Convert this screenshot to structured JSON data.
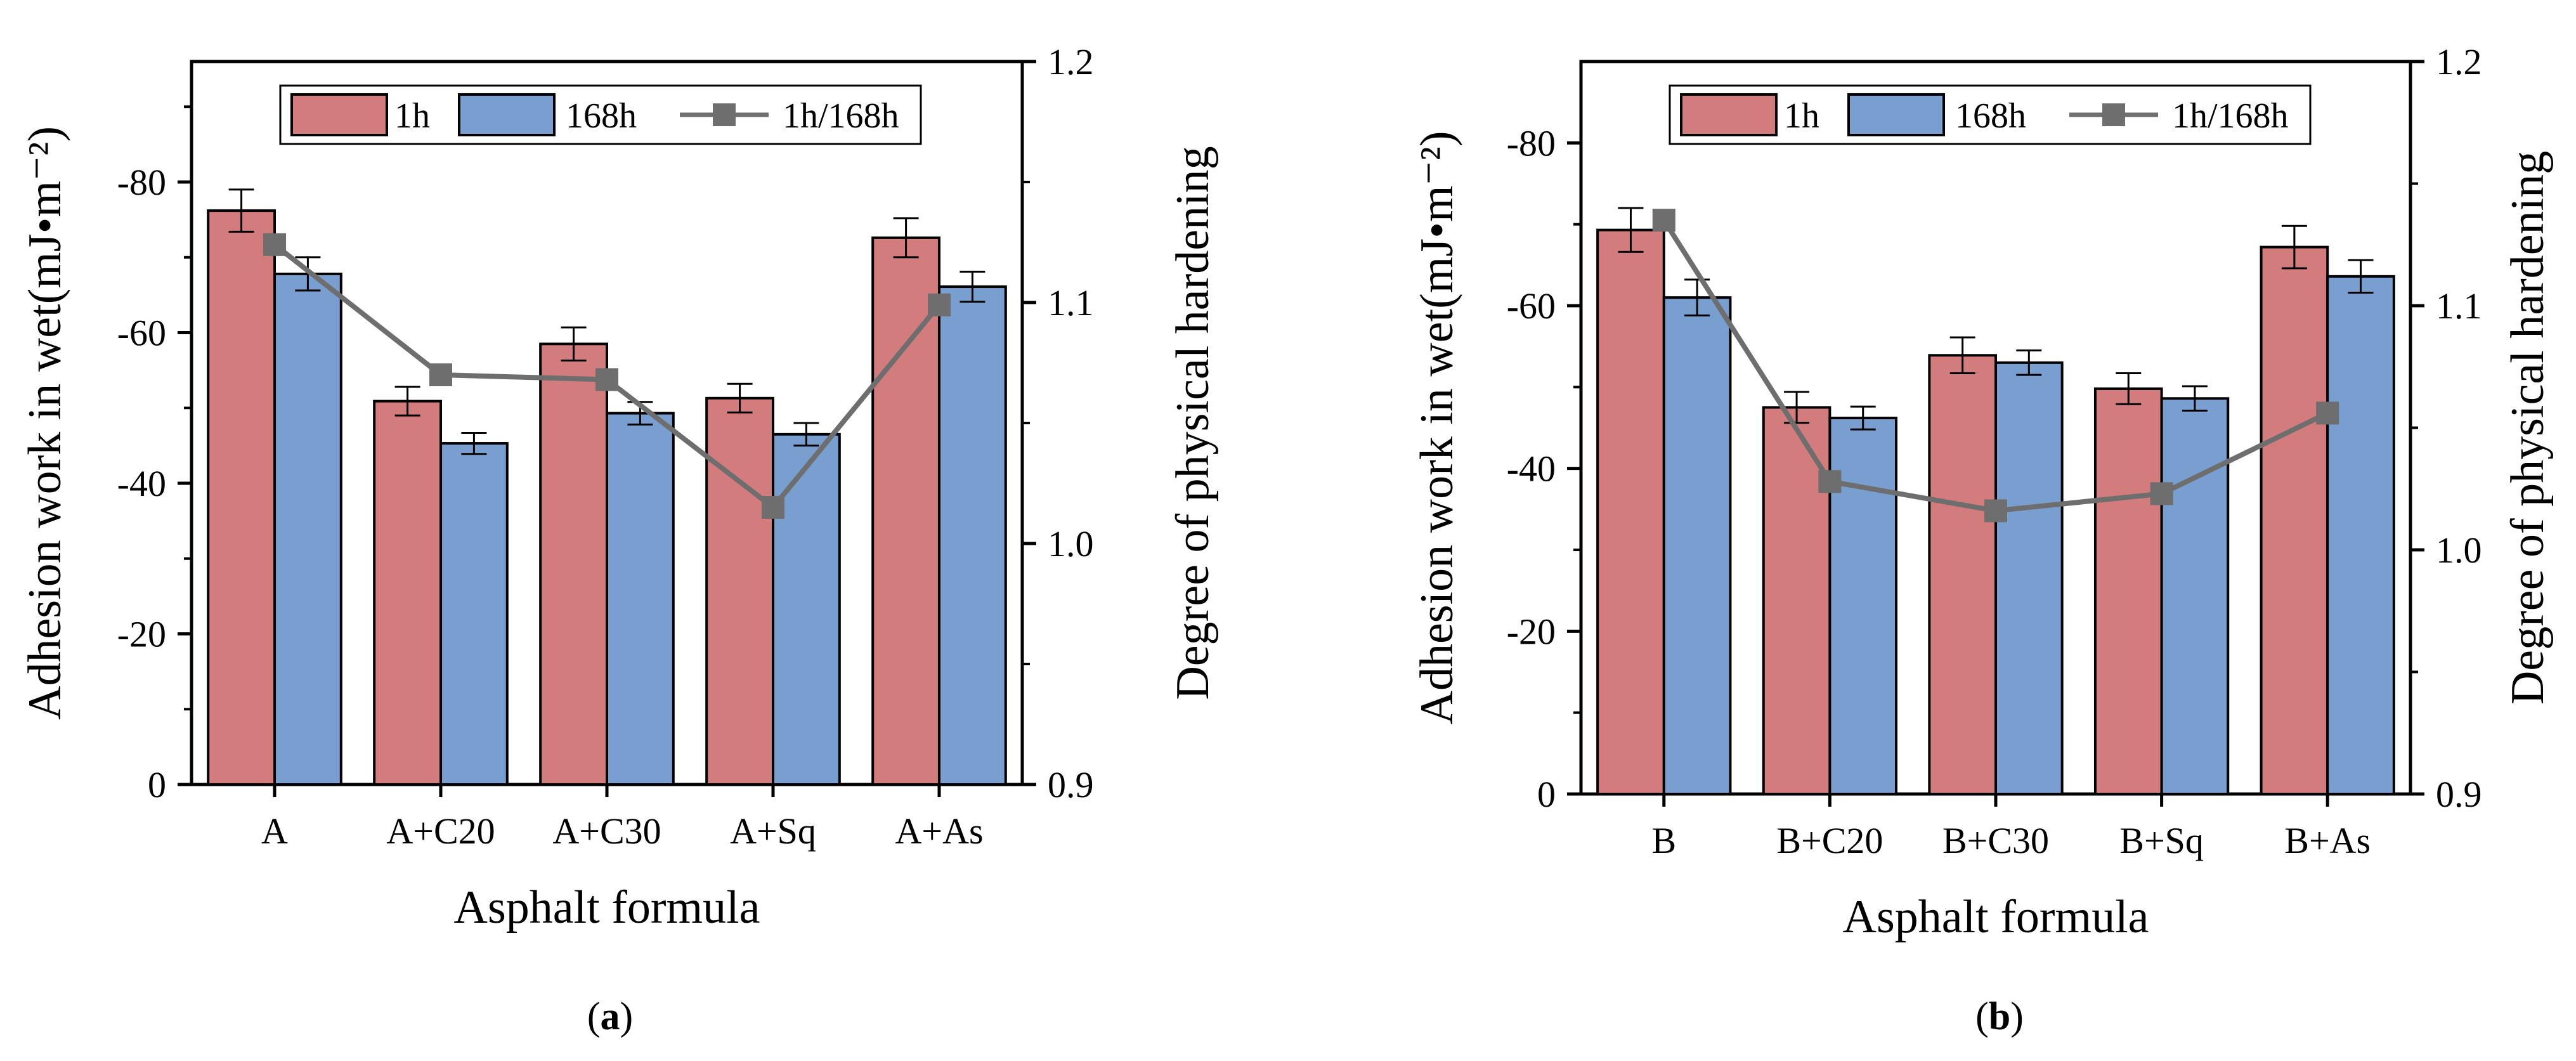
{
  "colors": {
    "bar_1h": "#d27c7e",
    "bar_168h": "#789fd0",
    "line_ratio": "#6e6e6e",
    "axis": "#000000"
  },
  "chart_data": [
    {
      "type": "bar",
      "panel_label": "a",
      "xlabel": "Asphalt formula",
      "ylabel": "Adhesion work in wet(mJ•m⁻²)",
      "y2label": "Degree of physical hardening",
      "categories": [
        "A",
        "A+C20",
        "A+C30",
        "A+Sq",
        "A+As"
      ],
      "ylim": [
        0,
        -96
      ],
      "yticks": [
        0,
        -20,
        -40,
        -60,
        -80
      ],
      "ytick_labels": [
        "0",
        "-20",
        "-40",
        "-60",
        "-80"
      ],
      "y2lim": [
        0.9,
        1.2
      ],
      "y2ticks": [
        0.9,
        1.0,
        1.1,
        1.2
      ],
      "y2tick_labels": [
        "0.9",
        "1.0",
        "1.1",
        "1.2"
      ],
      "series": [
        {
          "name": "1h",
          "kind": "bar",
          "values": [
            -76.2,
            -50.9,
            -58.5,
            -51.3,
            -72.6
          ],
          "errors": [
            2.8,
            1.9,
            2.2,
            1.9,
            2.6
          ]
        },
        {
          "name": "168h",
          "kind": "bar",
          "values": [
            -67.8,
            -45.3,
            -49.3,
            -46.5,
            -66.1
          ],
          "errors": [
            2.2,
            1.4,
            1.5,
            1.5,
            2.0
          ]
        },
        {
          "name": "1h/168h",
          "kind": "line",
          "axis": "right",
          "values": [
            1.124,
            1.07,
            1.068,
            1.015,
            1.099
          ]
        }
      ],
      "legend": [
        "1h",
        "168h",
        "1h/168h"
      ],
      "legend_position": "top"
    },
    {
      "type": "bar",
      "panel_label": "b",
      "xlabel": "Asphalt formula",
      "ylabel": "Adhesion work in wet(mJ•m⁻²)",
      "y2label": "Degree of physical hardening",
      "categories": [
        "B",
        "B+C20",
        "B+C30",
        "B+Sq",
        "B+As"
      ],
      "ylim": [
        0,
        -90
      ],
      "yticks": [
        0,
        -20,
        -40,
        -60,
        -80
      ],
      "ytick_labels": [
        "0",
        "-20",
        "-40",
        "-60",
        "-80"
      ],
      "y2lim": [
        0.9,
        1.2
      ],
      "y2ticks": [
        0.9,
        1.0,
        1.1,
        1.2
      ],
      "y2tick_labels": [
        "0.9",
        "1.0",
        "1.1",
        "1.2"
      ],
      "series": [
        {
          "name": "1h",
          "kind": "bar",
          "values": [
            -69.3,
            -47.5,
            -53.9,
            -49.8,
            -67.2
          ],
          "errors": [
            2.7,
            1.9,
            2.2,
            1.9,
            2.6
          ]
        },
        {
          "name": "168h",
          "kind": "bar",
          "values": [
            -61.0,
            -46.2,
            -53.0,
            -48.6,
            -63.6
          ],
          "errors": [
            2.2,
            1.4,
            1.5,
            1.5,
            2.0
          ]
        },
        {
          "name": "1h/168h",
          "kind": "line",
          "axis": "right",
          "values": [
            1.135,
            1.028,
            1.016,
            1.023,
            1.056
          ]
        }
      ],
      "legend": [
        "1h",
        "168h",
        "1h/168h"
      ],
      "legend_position": "top"
    }
  ]
}
